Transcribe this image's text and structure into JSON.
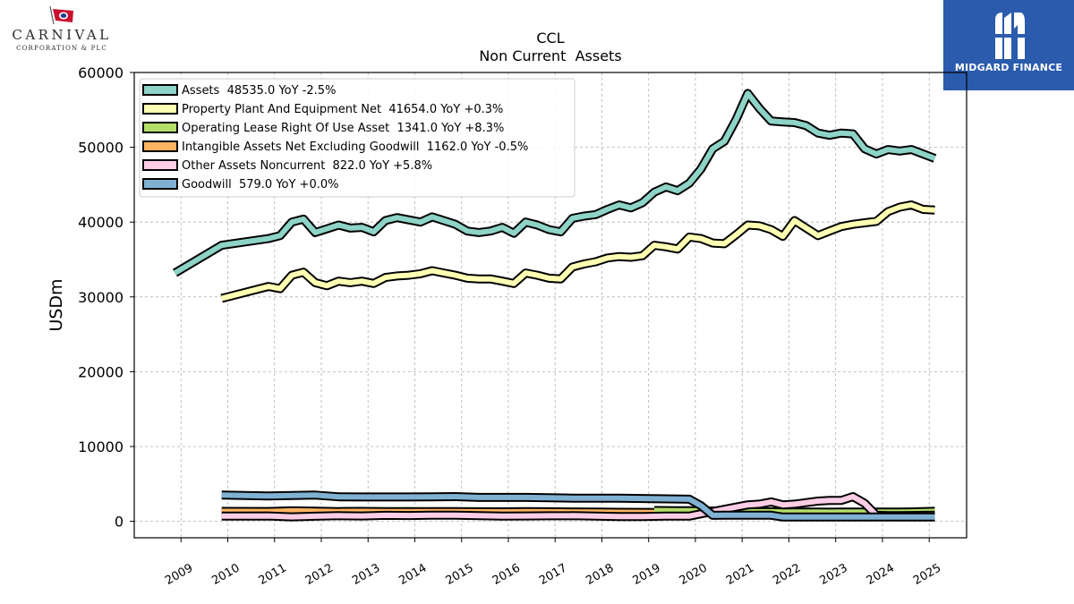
{
  "logos": {
    "left_name": "CARNIVAL",
    "left_sub": "CORPORATION & PLC",
    "right_brand": "MIDGARD FINANCE"
  },
  "chart_data": {
    "type": "line",
    "title": "CCL",
    "subtitle": "Non Current  Assets",
    "ylabel": "USDm",
    "xlabel": "",
    "ylim": [
      -2200,
      60000
    ],
    "xlim": [
      2008.0,
      2025.8
    ],
    "yticks": [
      0,
      10000,
      20000,
      30000,
      40000,
      50000,
      60000
    ],
    "xticks": [
      2009,
      2010,
      2011,
      2012,
      2013,
      2014,
      2015,
      2016,
      2017,
      2018,
      2019,
      2020,
      2021,
      2022,
      2023,
      2024,
      2025
    ],
    "grid": true,
    "legend_position": "top-left",
    "series": [
      {
        "name": "Assets",
        "legend": "Assets  48535.0 YoY -2.5%",
        "color": "#8dd3c7",
        "x": [
          2008.87,
          2009.87,
          2010.87,
          2011.12,
          2011.37,
          2011.62,
          2011.87,
          2012.12,
          2012.37,
          2012.62,
          2012.87,
          2013.12,
          2013.37,
          2013.62,
          2013.87,
          2014.12,
          2014.37,
          2014.62,
          2014.87,
          2015.12,
          2015.37,
          2015.62,
          2015.87,
          2016.12,
          2016.37,
          2016.62,
          2016.87,
          2017.12,
          2017.37,
          2017.62,
          2017.87,
          2018.12,
          2018.37,
          2018.62,
          2018.87,
          2019.12,
          2019.37,
          2019.62,
          2019.87,
          2020.12,
          2020.37,
          2020.62,
          2020.87,
          2021.12,
          2021.37,
          2021.62,
          2021.87,
          2022.12,
          2022.37,
          2022.62,
          2022.87,
          2023.12,
          2023.37,
          2023.62,
          2023.87,
          2024.12,
          2024.37,
          2024.62,
          2024.87,
          2025.12
        ],
        "y": [
          33200,
          36900,
          37800,
          38200,
          40000,
          40400,
          38600,
          39100,
          39600,
          39200,
          39300,
          38700,
          40200,
          40600,
          40300,
          40000,
          40700,
          40200,
          39700,
          38800,
          38600,
          38800,
          39300,
          38500,
          40000,
          39600,
          39000,
          38700,
          40500,
          40800,
          41000,
          41700,
          42300,
          41900,
          42600,
          44000,
          44700,
          44200,
          45200,
          47100,
          49800,
          50800,
          53700,
          57200,
          55200,
          53500,
          53400,
          53300,
          52900,
          51900,
          51600,
          51900,
          51800,
          49800,
          49100,
          49700,
          49500,
          49700,
          49100,
          48500
        ]
      },
      {
        "name": "Property Plant And Equipment Net",
        "legend": "Property Plant And Equipment Net  41654.0 YoY +0.3%",
        "color": "#ffffb3",
        "x": [
          2009.87,
          2010.87,
          2011.12,
          2011.37,
          2011.62,
          2011.87,
          2012.12,
          2012.37,
          2012.62,
          2012.87,
          2013.12,
          2013.37,
          2013.62,
          2013.87,
          2014.12,
          2014.37,
          2014.62,
          2014.87,
          2015.12,
          2015.37,
          2015.62,
          2015.87,
          2016.12,
          2016.37,
          2016.62,
          2016.87,
          2017.12,
          2017.37,
          2017.62,
          2017.87,
          2018.12,
          2018.37,
          2018.62,
          2018.87,
          2019.12,
          2019.37,
          2019.62,
          2019.87,
          2020.12,
          2020.37,
          2020.62,
          2020.87,
          2021.12,
          2021.37,
          2021.62,
          2021.87,
          2022.12,
          2022.37,
          2022.62,
          2022.87,
          2023.12,
          2023.37,
          2023.62,
          2023.87,
          2024.12,
          2024.37,
          2024.62,
          2024.87,
          2025.12
        ],
        "y": [
          29800,
          31400,
          31100,
          32900,
          33300,
          31900,
          31500,
          32100,
          31900,
          32100,
          31800,
          32600,
          32800,
          32900,
          33100,
          33500,
          33200,
          32900,
          32500,
          32400,
          32400,
          32100,
          31800,
          33200,
          32900,
          32500,
          32400,
          34000,
          34400,
          34700,
          35200,
          35400,
          35300,
          35500,
          36900,
          36700,
          36400,
          38000,
          37800,
          37200,
          37100,
          38300,
          39600,
          39500,
          39000,
          38100,
          40200,
          39200,
          38200,
          38800,
          39400,
          39700,
          39900,
          40100,
          41400,
          42000,
          42300,
          41700,
          41600
        ]
      },
      {
        "name": "Operating Lease Right Of Use Asset",
        "legend": "Operating Lease Right Of Use Asset  1341.0 YoY +8.3%",
        "color": "#b3de69",
        "x": [
          2019.12,
          2019.37,
          2019.62,
          2019.87,
          2020.12,
          2020.37,
          2020.62,
          2020.87,
          2021.12,
          2021.37,
          2021.62,
          2021.87,
          2022.12,
          2022.37,
          2022.62,
          2022.87,
          2023.12,
          2023.37,
          2023.62,
          2023.87,
          2024.12,
          2024.37,
          2024.62,
          2024.87,
          2025.12
        ],
        "y": [
          1450,
          1440,
          1420,
          1430,
          1420,
          1380,
          1350,
          1330,
          1300,
          1280,
          1280,
          1250,
          1240,
          1230,
          1230,
          1220,
          1230,
          1240,
          1230,
          1230,
          1240,
          1250,
          1260,
          1300,
          1341
        ]
      },
      {
        "name": "Intangible Assets Net Excluding Goodwill",
        "legend": "Intangible Assets Net Excluding Goodwill  1162.0 YoY -0.5%",
        "color": "#fdb462",
        "x": [
          2009.87,
          2010.87,
          2011.37,
          2011.87,
          2012.37,
          2012.87,
          2013.37,
          2013.87,
          2014.37,
          2014.87,
          2015.37,
          2015.87,
          2016.37,
          2016.87,
          2017.37,
          2017.87,
          2018.37,
          2018.87,
          2019.37,
          2019.87,
          2020.37,
          2020.87,
          2021.37,
          2021.87,
          2022.37,
          2022.87,
          2023.37,
          2023.87,
          2024.37,
          2024.87,
          2025.12
        ],
        "y": [
          1330,
          1320,
          1400,
          1350,
          1300,
          1330,
          1310,
          1310,
          1300,
          1300,
          1280,
          1270,
          1290,
          1280,
          1260,
          1250,
          1210,
          1200,
          1180,
          1160,
          1140,
          1130,
          1140,
          1170,
          1170,
          1170,
          1170,
          1170,
          1170,
          1170,
          1162
        ]
      },
      {
        "name": "Other Assets Noncurrent",
        "legend": "Other Assets Noncurrent  822.0 YoY +5.8%",
        "color": "#fccde5",
        "x": [
          2009.87,
          2010.87,
          2011.37,
          2011.87,
          2012.37,
          2012.87,
          2013.37,
          2013.87,
          2014.37,
          2014.87,
          2015.37,
          2015.87,
          2016.37,
          2016.87,
          2017.37,
          2017.87,
          2018.37,
          2018.87,
          2019.37,
          2019.87,
          2020.12,
          2020.37,
          2020.62,
          2020.87,
          2021.12,
          2021.37,
          2021.62,
          2021.87,
          2022.12,
          2022.37,
          2022.62,
          2022.87,
          2023.12,
          2023.37,
          2023.62,
          2023.87,
          2024.12,
          2024.37,
          2024.62,
          2024.87,
          2025.12
        ],
        "y": [
          700,
          720,
          600,
          680,
          760,
          720,
          800,
          780,
          820,
          810,
          760,
          700,
          720,
          740,
          760,
          700,
          650,
          640,
          690,
          700,
          1000,
          1300,
          1600,
          1900,
          2200,
          2300,
          2600,
          2200,
          2300,
          2500,
          2700,
          2800,
          2800,
          3300,
          2400,
          800,
          750,
          760,
          780,
          800,
          822
        ]
      },
      {
        "name": "Goodwill",
        "legend": "Goodwill  579.0 YoY +0.0%",
        "color": "#80b1d3",
        "x": [
          2009.87,
          2010.87,
          2011.37,
          2011.87,
          2012.37,
          2012.87,
          2013.37,
          2013.87,
          2014.37,
          2014.87,
          2015.37,
          2015.87,
          2016.37,
          2016.87,
          2017.37,
          2017.87,
          2018.37,
          2018.87,
          2019.37,
          2019.87,
          2020.12,
          2020.37,
          2020.62,
          2020.87,
          2021.12,
          2021.37,
          2021.62,
          2021.87,
          2022.12,
          2022.37,
          2022.62,
          2022.87,
          2023.12,
          2023.37,
          2023.62,
          2023.87,
          2024.12,
          2024.37,
          2024.62,
          2024.87,
          2025.12
        ],
        "y": [
          3500,
          3400,
          3450,
          3500,
          3280,
          3250,
          3260,
          3250,
          3280,
          3300,
          3200,
          3200,
          3200,
          3150,
          3100,
          3100,
          3100,
          3050,
          3000,
          2950,
          2100,
          800,
          810,
          810,
          810,
          810,
          810,
          580,
          579,
          579,
          579,
          579,
          579,
          579,
          579,
          579,
          579,
          579,
          579,
          579,
          579
        ]
      }
    ]
  }
}
